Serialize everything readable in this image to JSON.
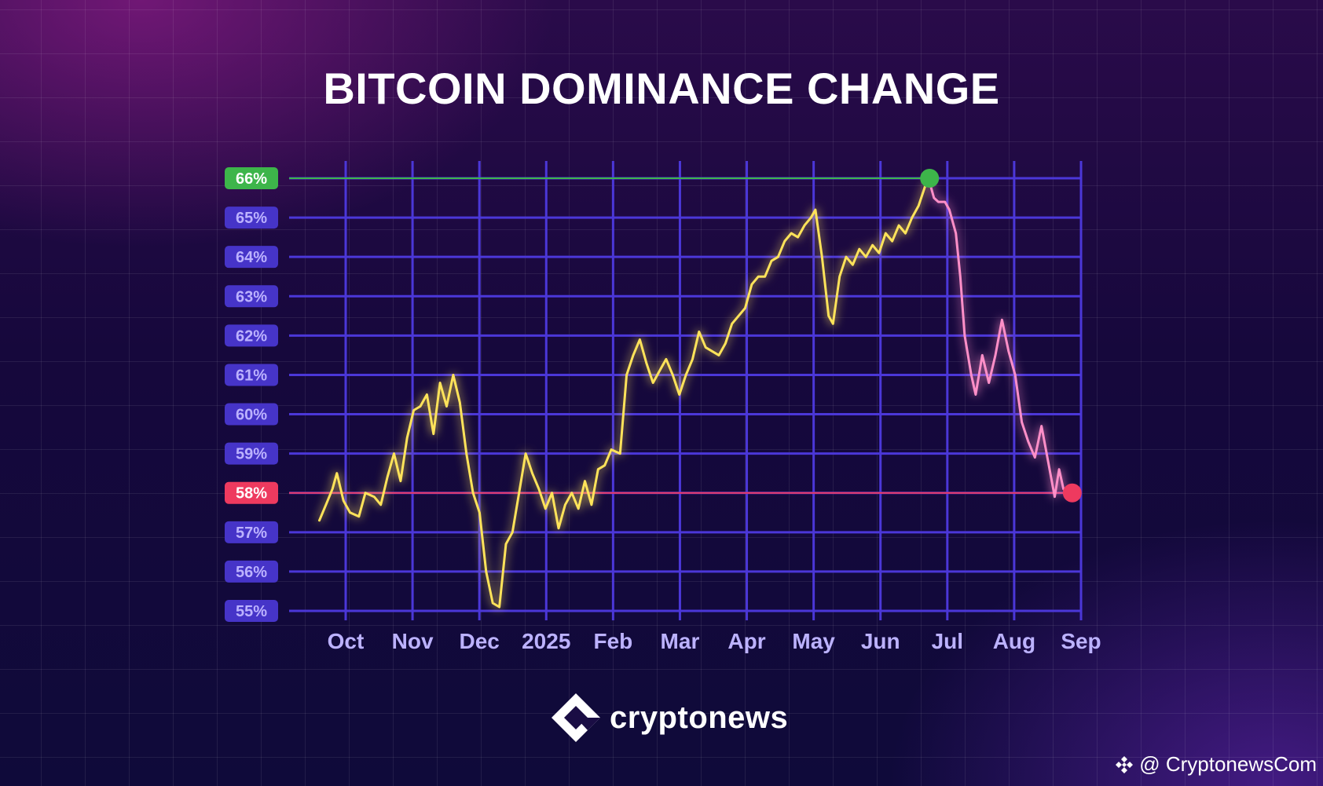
{
  "chart_data": {
    "type": "line",
    "title": "BITCOIN DOMINANCE CHANGE",
    "ylim": [
      55,
      66
    ],
    "y_ticks": [
      "55%",
      "56%",
      "57%",
      "58%",
      "59%",
      "60%",
      "61%",
      "62%",
      "63%",
      "64%",
      "65%",
      "66%"
    ],
    "x_tick_labels": [
      "Oct",
      "Nov",
      "Dec",
      "2025",
      "Feb",
      "Mar",
      "Apr",
      "May",
      "Jun",
      "Jul",
      "Aug",
      "Sep"
    ],
    "x_tick_dates": [
      "2024-10-01",
      "2024-11-01",
      "2024-12-01",
      "2025-01-01",
      "2025-02-01",
      "2025-03-01",
      "2025-04-01",
      "2025-05-01",
      "2025-06-01",
      "2025-07-01",
      "2025-08-01",
      "2025-09-01"
    ],
    "grid": true,
    "series": [
      {
        "points": [
          [
            "2024-09-19",
            57.3
          ],
          [
            "2024-09-22",
            57.7
          ],
          [
            "2024-09-25",
            58.1
          ],
          [
            "2024-09-27",
            58.5
          ],
          [
            "2024-09-30",
            57.8
          ],
          [
            "2024-10-03",
            57.5
          ],
          [
            "2024-10-07",
            57.4
          ],
          [
            "2024-10-10",
            58.0
          ],
          [
            "2024-10-14",
            57.9
          ],
          [
            "2024-10-17",
            57.7
          ],
          [
            "2024-10-20",
            58.4
          ],
          [
            "2024-10-23",
            59.0
          ],
          [
            "2024-10-26",
            58.3
          ],
          [
            "2024-10-29",
            59.4
          ],
          [
            "2024-11-01",
            60.1
          ],
          [
            "2024-11-04",
            60.2
          ],
          [
            "2024-11-07",
            60.5
          ],
          [
            "2024-11-10",
            59.5
          ],
          [
            "2024-11-13",
            60.8
          ],
          [
            "2024-11-16",
            60.2
          ],
          [
            "2024-11-19",
            61.0
          ],
          [
            "2024-11-22",
            60.3
          ],
          [
            "2024-11-25",
            59.0
          ],
          [
            "2024-11-28",
            58.0
          ],
          [
            "2024-12-01",
            57.5
          ],
          [
            "2024-12-04",
            56.0
          ],
          [
            "2024-12-07",
            55.2
          ],
          [
            "2024-12-10",
            55.1
          ],
          [
            "2024-12-13",
            56.7
          ],
          [
            "2024-12-16",
            57.0
          ],
          [
            "2024-12-19",
            58.0
          ],
          [
            "2024-12-22",
            59.0
          ],
          [
            "2024-12-25",
            58.5
          ],
          [
            "2024-12-28",
            58.1
          ],
          [
            "2024-12-31",
            57.6
          ],
          [
            "2025-01-03",
            58.0
          ],
          [
            "2025-01-06",
            57.1
          ],
          [
            "2025-01-09",
            57.7
          ],
          [
            "2025-01-12",
            58.0
          ],
          [
            "2025-01-15",
            57.6
          ],
          [
            "2025-01-18",
            58.3
          ],
          [
            "2025-01-21",
            57.7
          ],
          [
            "2025-01-24",
            58.6
          ],
          [
            "2025-01-27",
            58.7
          ],
          [
            "2025-01-30",
            59.1
          ],
          [
            "2025-02-03",
            59.0
          ],
          [
            "2025-02-06",
            61.0
          ],
          [
            "2025-02-09",
            61.5
          ],
          [
            "2025-02-12",
            61.9
          ],
          [
            "2025-02-15",
            61.3
          ],
          [
            "2025-02-18",
            60.8
          ],
          [
            "2025-02-21",
            61.1
          ],
          [
            "2025-02-24",
            61.4
          ],
          [
            "2025-02-27",
            61.0
          ],
          [
            "2025-03-02",
            60.5
          ],
          [
            "2025-03-05",
            61.0
          ],
          [
            "2025-03-08",
            61.4
          ],
          [
            "2025-03-11",
            62.1
          ],
          [
            "2025-03-14",
            61.7
          ],
          [
            "2025-03-17",
            61.6
          ],
          [
            "2025-03-20",
            61.5
          ],
          [
            "2025-03-23",
            61.8
          ],
          [
            "2025-03-26",
            62.3
          ],
          [
            "2025-03-29",
            62.5
          ],
          [
            "2025-04-01",
            62.7
          ],
          [
            "2025-04-04",
            63.3
          ],
          [
            "2025-04-07",
            63.5
          ],
          [
            "2025-04-10",
            63.5
          ],
          [
            "2025-04-13",
            63.9
          ],
          [
            "2025-04-16",
            64.0
          ],
          [
            "2025-04-19",
            64.4
          ],
          [
            "2025-04-22",
            64.6
          ],
          [
            "2025-04-25",
            64.5
          ],
          [
            "2025-04-28",
            64.8
          ],
          [
            "2025-05-01",
            65.0
          ],
          [
            "2025-05-03",
            65.2
          ],
          [
            "2025-05-06",
            64.0
          ],
          [
            "2025-05-09",
            62.5
          ],
          [
            "2025-05-11",
            62.3
          ],
          [
            "2025-05-14",
            63.5
          ],
          [
            "2025-05-17",
            64.0
          ],
          [
            "2025-05-20",
            63.8
          ],
          [
            "2025-05-23",
            64.2
          ],
          [
            "2025-05-26",
            64.0
          ],
          [
            "2025-05-29",
            64.3
          ],
          [
            "2025-06-01",
            64.1
          ],
          [
            "2025-06-04",
            64.6
          ],
          [
            "2025-06-07",
            64.4
          ],
          [
            "2025-06-10",
            64.8
          ],
          [
            "2025-06-13",
            64.6
          ],
          [
            "2025-06-16",
            65.0
          ],
          [
            "2025-06-19",
            65.3
          ],
          [
            "2025-06-22",
            65.8
          ],
          [
            "2025-06-24",
            65.9
          ]
        ]
      },
      {
        "points": [
          [
            "2025-06-24",
            65.9
          ],
          [
            "2025-06-26",
            65.5
          ],
          [
            "2025-06-28",
            65.4
          ],
          [
            "2025-07-01",
            65.4
          ],
          [
            "2025-07-03",
            65.2
          ],
          [
            "2025-07-06",
            64.6
          ],
          [
            "2025-07-08",
            63.5
          ],
          [
            "2025-07-10",
            62.0
          ],
          [
            "2025-07-13",
            61.0
          ],
          [
            "2025-07-15",
            60.5
          ],
          [
            "2025-07-18",
            61.5
          ],
          [
            "2025-07-21",
            60.8
          ],
          [
            "2025-07-24",
            61.5
          ],
          [
            "2025-07-27",
            62.4
          ],
          [
            "2025-07-30",
            61.6
          ],
          [
            "2025-08-02",
            61.0
          ],
          [
            "2025-08-05",
            59.8
          ],
          [
            "2025-08-08",
            59.3
          ],
          [
            "2025-08-11",
            58.9
          ],
          [
            "2025-08-14",
            59.7
          ],
          [
            "2025-08-17",
            58.8
          ],
          [
            "2025-08-20",
            57.9
          ],
          [
            "2025-08-22",
            58.6
          ],
          [
            "2025-08-24",
            58.1
          ],
          [
            "2025-08-26",
            58.0
          ],
          [
            "2025-08-28",
            58.0
          ]
        ]
      }
    ],
    "annotations": [
      {
        "date": "2025-06-24",
        "value": 66,
        "label": "66%",
        "color": "#3db54a"
      },
      {
        "date": "2025-08-28",
        "value": 58,
        "label": "58%",
        "color": "#ee3a5f"
      }
    ]
  },
  "colors": {
    "line_up": "#ffe35a",
    "line_down": "#ff8fc8",
    "grid": "#4b37d8",
    "tick_badge": "#4634c8",
    "tick_text": "#bcb2ff",
    "high": "#3db54a",
    "low": "#ee3a5f"
  },
  "brand": {
    "name": "cryptonews",
    "logo_icon": "cryptonews-logo-icon",
    "handle": "@ CryptonewsCom",
    "handle_icon": "binance-diamond-icon"
  }
}
